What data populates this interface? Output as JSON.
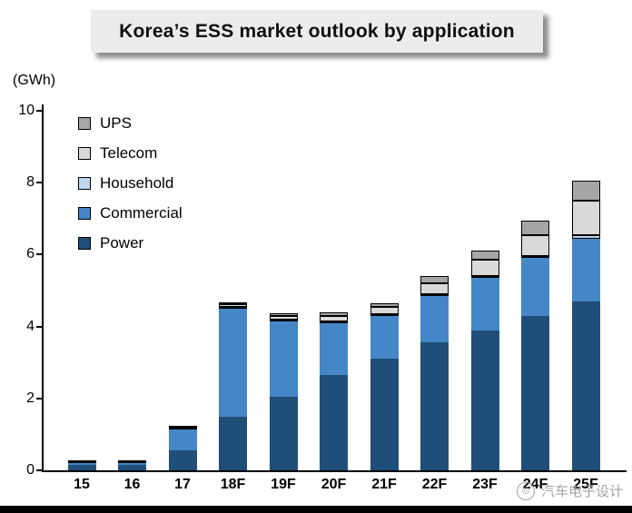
{
  "header": {
    "title": "Korea’s ESS market outlook by application"
  },
  "y_axis_unit": "(GWh)",
  "watermark": {
    "text": "汽车电子设计"
  },
  "chart_data": {
    "type": "bar",
    "stacked": true,
    "title": "Korea’s ESS market outlook by application",
    "ylabel": "(GWh)",
    "ylim": [
      0,
      10
    ],
    "yticks": [
      0,
      2,
      4,
      6,
      8,
      10
    ],
    "grid": false,
    "legend_position": "inside-top-left",
    "categories": [
      "15",
      "16",
      "17",
      "18F",
      "19F",
      "20F",
      "21F",
      "22F",
      "23F",
      "24F",
      "25F"
    ],
    "series": [
      {
        "name": "Power",
        "color": "#1F4E79",
        "outlined": false,
        "values": [
          0.15,
          0.15,
          0.55,
          1.5,
          2.05,
          2.65,
          3.1,
          3.55,
          3.9,
          4.3,
          4.7
        ]
      },
      {
        "name": "Commercial",
        "color": "#4586C6",
        "outlined": false,
        "values": [
          0.08,
          0.08,
          0.6,
          3.0,
          2.1,
          1.45,
          1.2,
          1.3,
          1.45,
          1.6,
          1.75
        ]
      },
      {
        "name": "Household",
        "color": "#BDD7EE",
        "outlined": true,
        "values": [
          0.01,
          0.01,
          0.03,
          0.05,
          0.05,
          0.05,
          0.05,
          0.05,
          0.05,
          0.05,
          0.1
        ]
      },
      {
        "name": "Telecom",
        "color": "#D9D9D9",
        "outlined": true,
        "values": [
          0.01,
          0.01,
          0.03,
          0.08,
          0.1,
          0.15,
          0.2,
          0.3,
          0.45,
          0.6,
          0.95
        ]
      },
      {
        "name": "UPS",
        "color": "#A6A6A6",
        "outlined": true,
        "values": [
          0.02,
          0.02,
          0.02,
          0.05,
          0.08,
          0.1,
          0.1,
          0.2,
          0.25,
          0.4,
          0.55
        ]
      }
    ]
  }
}
